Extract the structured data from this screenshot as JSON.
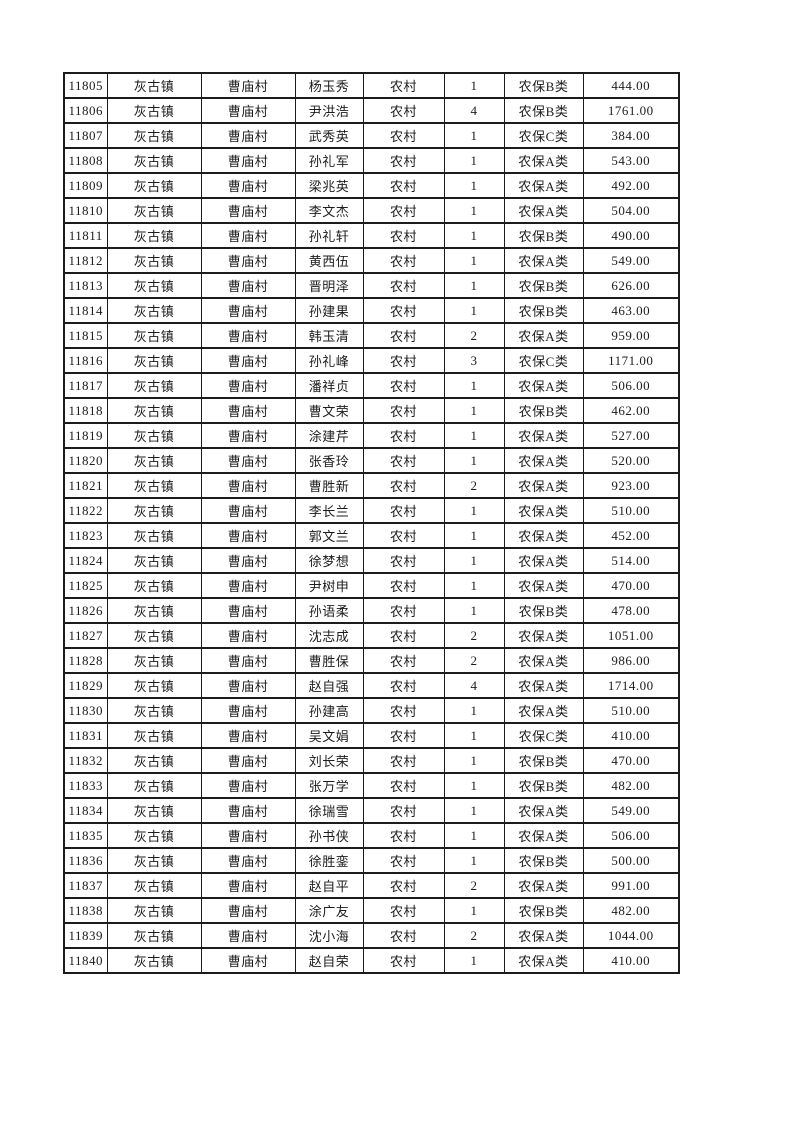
{
  "table": {
    "border_color": "#1c1c1c",
    "columns": [
      "id",
      "town",
      "village",
      "name",
      "residence-type",
      "person-count",
      "insurance-category",
      "amount"
    ],
    "rows": [
      [
        "11805",
        "灰古镇",
        "曹庙村",
        "杨玉秀",
        "农村",
        "1",
        "农保B类",
        "444.00"
      ],
      [
        "11806",
        "灰古镇",
        "曹庙村",
        "尹洪浩",
        "农村",
        "4",
        "农保B类",
        "1761.00"
      ],
      [
        "11807",
        "灰古镇",
        "曹庙村",
        "武秀英",
        "农村",
        "1",
        "农保C类",
        "384.00"
      ],
      [
        "11808",
        "灰古镇",
        "曹庙村",
        "孙礼军",
        "农村",
        "1",
        "农保A类",
        "543.00"
      ],
      [
        "11809",
        "灰古镇",
        "曹庙村",
        "梁兆英",
        "农村",
        "1",
        "农保A类",
        "492.00"
      ],
      [
        "11810",
        "灰古镇",
        "曹庙村",
        "李文杰",
        "农村",
        "1",
        "农保A类",
        "504.00"
      ],
      [
        "11811",
        "灰古镇",
        "曹庙村",
        "孙礼轩",
        "农村",
        "1",
        "农保B类",
        "490.00"
      ],
      [
        "11812",
        "灰古镇",
        "曹庙村",
        "黄西伍",
        "农村",
        "1",
        "农保A类",
        "549.00"
      ],
      [
        "11813",
        "灰古镇",
        "曹庙村",
        "晋明泽",
        "农村",
        "1",
        "农保B类",
        "626.00"
      ],
      [
        "11814",
        "灰古镇",
        "曹庙村",
        "孙建果",
        "农村",
        "1",
        "农保B类",
        "463.00"
      ],
      [
        "11815",
        "灰古镇",
        "曹庙村",
        "韩玉清",
        "农村",
        "2",
        "农保A类",
        "959.00"
      ],
      [
        "11816",
        "灰古镇",
        "曹庙村",
        "孙礼峰",
        "农村",
        "3",
        "农保C类",
        "1171.00"
      ],
      [
        "11817",
        "灰古镇",
        "曹庙村",
        "潘祥贞",
        "农村",
        "1",
        "农保A类",
        "506.00"
      ],
      [
        "11818",
        "灰古镇",
        "曹庙村",
        "曹文荣",
        "农村",
        "1",
        "农保B类",
        "462.00"
      ],
      [
        "11819",
        "灰古镇",
        "曹庙村",
        "涂建芹",
        "农村",
        "1",
        "农保A类",
        "527.00"
      ],
      [
        "11820",
        "灰古镇",
        "曹庙村",
        "张香玲",
        "农村",
        "1",
        "农保A类",
        "520.00"
      ],
      [
        "11821",
        "灰古镇",
        "曹庙村",
        "曹胜新",
        "农村",
        "2",
        "农保A类",
        "923.00"
      ],
      [
        "11822",
        "灰古镇",
        "曹庙村",
        "李长兰",
        "农村",
        "1",
        "农保A类",
        "510.00"
      ],
      [
        "11823",
        "灰古镇",
        "曹庙村",
        "郭文兰",
        "农村",
        "1",
        "农保A类",
        "452.00"
      ],
      [
        "11824",
        "灰古镇",
        "曹庙村",
        "徐梦想",
        "农村",
        "1",
        "农保A类",
        "514.00"
      ],
      [
        "11825",
        "灰古镇",
        "曹庙村",
        "尹树申",
        "农村",
        "1",
        "农保A类",
        "470.00"
      ],
      [
        "11826",
        "灰古镇",
        "曹庙村",
        "孙语柔",
        "农村",
        "1",
        "农保B类",
        "478.00"
      ],
      [
        "11827",
        "灰古镇",
        "曹庙村",
        "沈志成",
        "农村",
        "2",
        "农保A类",
        "1051.00"
      ],
      [
        "11828",
        "灰古镇",
        "曹庙村",
        "曹胜保",
        "农村",
        "2",
        "农保A类",
        "986.00"
      ],
      [
        "11829",
        "灰古镇",
        "曹庙村",
        "赵自强",
        "农村",
        "4",
        "农保A类",
        "1714.00"
      ],
      [
        "11830",
        "灰古镇",
        "曹庙村",
        "孙建高",
        "农村",
        "1",
        "农保A类",
        "510.00"
      ],
      [
        "11831",
        "灰古镇",
        "曹庙村",
        "吴文娟",
        "农村",
        "1",
        "农保C类",
        "410.00"
      ],
      [
        "11832",
        "灰古镇",
        "曹庙村",
        "刘长荣",
        "农村",
        "1",
        "农保B类",
        "470.00"
      ],
      [
        "11833",
        "灰古镇",
        "曹庙村",
        "张万学",
        "农村",
        "1",
        "农保B类",
        "482.00"
      ],
      [
        "11834",
        "灰古镇",
        "曹庙村",
        "徐瑞雪",
        "农村",
        "1",
        "农保A类",
        "549.00"
      ],
      [
        "11835",
        "灰古镇",
        "曹庙村",
        "孙书侠",
        "农村",
        "1",
        "农保A类",
        "506.00"
      ],
      [
        "11836",
        "灰古镇",
        "曹庙村",
        "徐胜銮",
        "农村",
        "1",
        "农保B类",
        "500.00"
      ],
      [
        "11837",
        "灰古镇",
        "曹庙村",
        "赵自平",
        "农村",
        "2",
        "农保A类",
        "991.00"
      ],
      [
        "11838",
        "灰古镇",
        "曹庙村",
        "涂广友",
        "农村",
        "1",
        "农保B类",
        "482.00"
      ],
      [
        "11839",
        "灰古镇",
        "曹庙村",
        "沈小海",
        "农村",
        "2",
        "农保A类",
        "1044.00"
      ],
      [
        "11840",
        "灰古镇",
        "曹庙村",
        "赵自荣",
        "农村",
        "1",
        "农保A类",
        "410.00"
      ]
    ]
  }
}
